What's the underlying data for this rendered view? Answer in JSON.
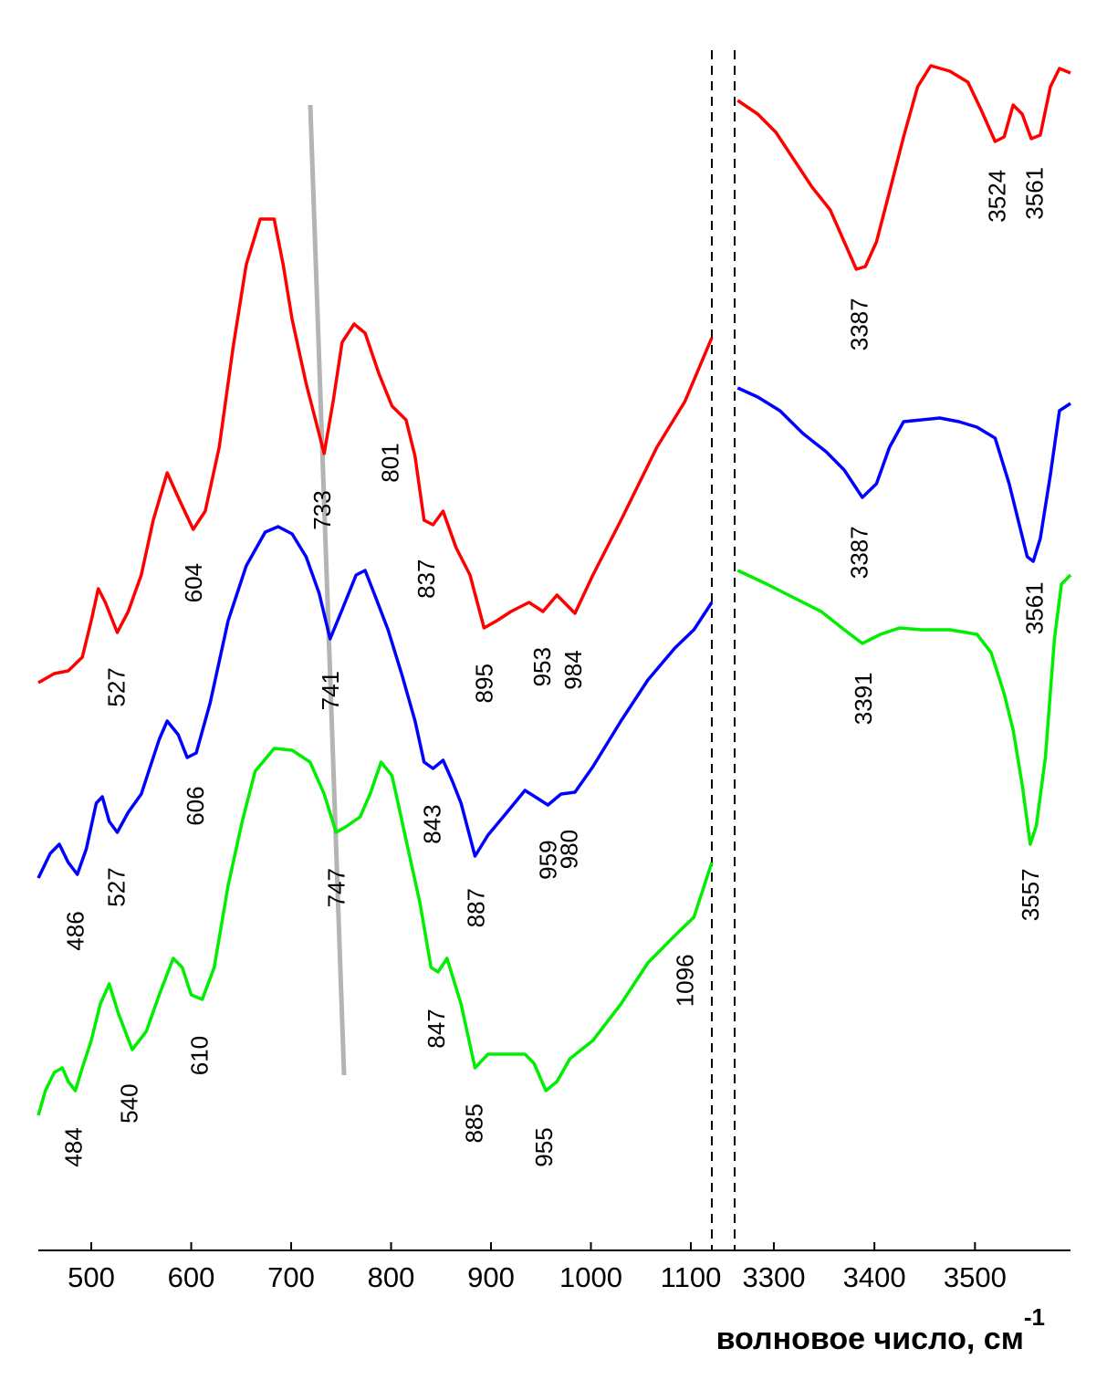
{
  "chart_data": [
    {
      "type": "line",
      "xlim": [
        447,
        1121
      ],
      "ylim": [
        0,
        131
      ],
      "xticks": [
        500,
        600,
        700,
        800,
        900,
        1000,
        1100
      ],
      "series": [
        {
          "color": "#ff0000",
          "x": [
            447,
            463,
            477,
            491,
            500,
            507,
            514,
            526,
            537,
            550,
            562,
            576,
            587,
            602,
            614,
            628,
            642,
            655,
            669,
            683,
            692,
            701,
            715,
            733,
            742,
            751,
            763,
            774,
            788,
            801,
            815,
            824,
            833,
            842,
            852,
            865,
            879,
            893,
            906,
            920,
            938,
            952,
            966,
            984,
            1002,
            1030,
            1066,
            1094,
            1121
          ],
          "values": [
            62.2,
            63.2,
            63.5,
            65,
            69,
            72.5,
            71,
            67.7,
            70,
            74,
            80,
            85.2,
            82.5,
            79,
            81,
            88,
            99,
            108,
            113,
            113,
            108,
            102,
            95,
            87.3,
            93,
            99.5,
            101.5,
            100.5,
            96,
            92.5,
            91,
            87,
            80,
            79.5,
            81,
            77,
            74,
            68.2,
            69,
            70,
            71,
            70,
            71.8,
            69.8,
            74,
            80,
            88,
            93,
            100
          ],
          "peaks": [
            527,
            604,
            733,
            801,
            837,
            895,
            953,
            984
          ]
        },
        {
          "color": "#0000ff",
          "x": [
            447,
            459,
            468,
            477,
            486,
            495,
            505,
            511,
            518,
            526,
            537,
            550,
            559,
            568,
            576,
            587,
            596,
            605,
            619,
            637,
            655,
            674,
            687,
            701,
            715,
            728,
            739,
            751,
            765,
            774,
            783,
            797,
            811,
            824,
            833,
            842,
            852,
            861,
            870,
            884,
            897,
            916,
            934,
            947,
            957,
            970,
            984,
            1002,
            1030,
            1057,
            1084,
            1103,
            1121
          ],
          "values": [
            40.8,
            43.5,
            44.5,
            42.5,
            41.2,
            44,
            49,
            49.7,
            47,
            45.8,
            48,
            50,
            53,
            56,
            58,
            56.5,
            54,
            54.5,
            60,
            69,
            75,
            78.7,
            79.3,
            78.5,
            76,
            72,
            67,
            70.2,
            74,
            74.5,
            72,
            68,
            63,
            58,
            53.5,
            52.8,
            53.7,
            51.5,
            49,
            43.2,
            45.5,
            48,
            50.4,
            49.5,
            48.8,
            50,
            50.2,
            53,
            58,
            62.5,
            66,
            68,
            71
          ],
          "peaks": [
            486,
            527,
            606,
            741,
            843,
            887,
            959,
            980
          ]
        },
        {
          "color": "#00ee00",
          "x": [
            447,
            454,
            463,
            471,
            477,
            484,
            491,
            500,
            509,
            518,
            527,
            541,
            555,
            568,
            582,
            591,
            600,
            611,
            623,
            637,
            651,
            664,
            683,
            701,
            719,
            733,
            745,
            756,
            769,
            779,
            790,
            801,
            815,
            829,
            840,
            847,
            856,
            870,
            884,
            897,
            916,
            934,
            943,
            955,
            966,
            979,
            1002,
            1030,
            1057,
            1084,
            1103,
            1121
          ],
          "values": [
            14.8,
            17.5,
            19.5,
            20,
            18.5,
            17.5,
            20,
            23,
            27,
            29.2,
            26,
            22,
            24,
            28,
            32,
            31,
            28,
            27.5,
            31,
            40,
            47,
            52.5,
            55,
            54.8,
            53.5,
            50,
            45.8,
            46.5,
            47.5,
            50,
            53.5,
            52,
            45,
            38,
            31,
            30.5,
            32,
            27,
            20,
            21.5,
            21.5,
            21.5,
            20.5,
            17.5,
            18.5,
            21,
            23,
            27,
            31.5,
            34.5,
            36.5,
            42.5
          ],
          "peaks": [
            484,
            540,
            610,
            747,
            847,
            885,
            955,
            1096
          ]
        }
      ]
    },
    {
      "type": "line",
      "xlim": [
        3261,
        3595
      ],
      "ylim": [
        0,
        131
      ],
      "xticks": [
        3300,
        3400,
        3500
      ],
      "xlabel": {
        "text": "волновое число, см",
        "superscript": "-1"
      },
      "series": [
        {
          "color": "#ff0000",
          "x": [
            3264,
            3284,
            3302,
            3320,
            3338,
            3356,
            3370,
            3382,
            3391,
            3402,
            3415,
            3429,
            3443,
            3456,
            3475,
            3493,
            3506,
            3520,
            3529,
            3538,
            3547,
            3556,
            3565,
            3575,
            3584,
            3595
          ],
          "values": [
            126,
            124.5,
            122.5,
            119.5,
            116.5,
            114,
            110.5,
            107.5,
            107.8,
            110.5,
            116,
            122,
            127.5,
            129.8,
            129.2,
            128,
            125,
            121.5,
            122,
            125.5,
            124.5,
            121.8,
            122.2,
            127.5,
            129.5,
            129
          ],
          "peaks": [
            3387,
            3524,
            3561
          ]
        },
        {
          "color": "#0000ff",
          "x": [
            3264,
            3284,
            3306,
            3329,
            3352,
            3370,
            3388,
            3402,
            3415,
            3429,
            3447,
            3465,
            3484,
            3502,
            3520,
            3534,
            3543,
            3552,
            3558,
            3565,
            3575,
            3584,
            3595
          ],
          "values": [
            94.5,
            93.5,
            92,
            89.5,
            87.5,
            85.5,
            82.5,
            84,
            88,
            90.8,
            91,
            91.2,
            90.8,
            90.2,
            89,
            84,
            80,
            76,
            75.5,
            78,
            85,
            92,
            92.8
          ],
          "peaks": [
            3387,
            3561
          ]
        },
        {
          "color": "#00ee00",
          "x": [
            3264,
            3293,
            3320,
            3347,
            3370,
            3388,
            3406,
            3425,
            3447,
            3475,
            3502,
            3516,
            3529,
            3538,
            3547,
            3555,
            3561,
            3570,
            3579,
            3586,
            3595
          ],
          "values": [
            74.5,
            73,
            71.5,
            70,
            68,
            66.5,
            67.5,
            68.2,
            68,
            68,
            67.5,
            65.5,
            61,
            57,
            51,
            44.5,
            46.5,
            54,
            67,
            73,
            74
          ],
          "peaks": [
            3391,
            3557
          ]
        }
      ]
    }
  ]
}
